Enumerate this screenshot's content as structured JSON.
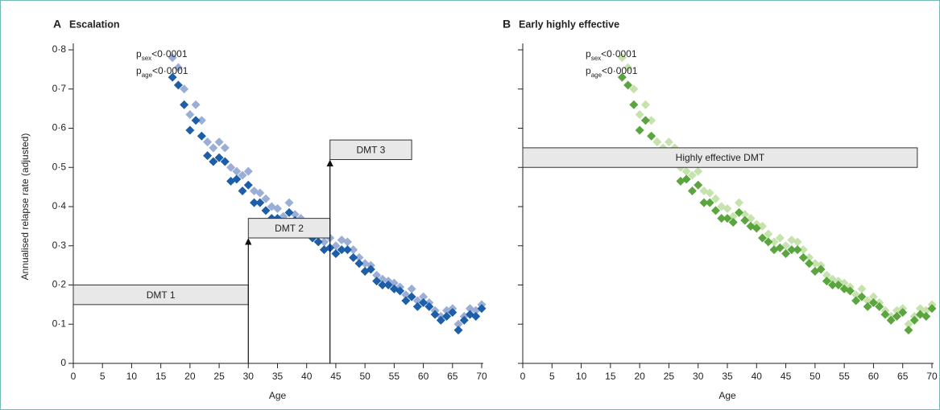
{
  "chart_data": [
    {
      "type": "scatter",
      "panel": "A",
      "title": "Escalation",
      "xlabel": "Age",
      "ylabel": "Annualised relapse rate (adjusted)",
      "x": [
        17,
        18,
        19,
        20,
        21,
        22,
        23,
        24,
        25,
        26,
        27,
        28,
        29,
        30,
        31,
        32,
        33,
        34,
        35,
        36,
        37,
        38,
        39,
        40,
        41,
        42,
        43,
        44,
        45,
        46,
        47,
        48,
        49,
        50,
        51,
        52,
        53,
        54,
        55,
        56,
        57,
        58,
        59,
        60,
        61,
        62,
        63,
        64,
        65,
        66,
        67,
        68,
        69,
        70
      ],
      "series": [
        {
          "color": "#9aaed6",
          "values": [
            0.78,
            0.755,
            0.7,
            0.635,
            0.66,
            0.62,
            0.565,
            0.55,
            0.565,
            0.55,
            0.5,
            0.49,
            0.48,
            0.49,
            0.44,
            0.435,
            0.42,
            0.4,
            0.395,
            0.375,
            0.41,
            0.38,
            0.37,
            0.355,
            0.35,
            0.33,
            0.31,
            0.32,
            0.3,
            0.315,
            0.31,
            0.29,
            0.27,
            0.255,
            0.25,
            0.225,
            0.215,
            0.21,
            0.205,
            0.195,
            0.175,
            0.19,
            0.16,
            0.17,
            0.155,
            0.135,
            0.12,
            0.135,
            0.14,
            0.1,
            0.12,
            0.14,
            0.135,
            0.15
          ]
        },
        {
          "color": "#1d5ea8",
          "values": [
            0.73,
            0.71,
            0.66,
            0.595,
            0.62,
            0.58,
            0.53,
            0.515,
            0.525,
            0.515,
            0.465,
            0.47,
            0.44,
            0.455,
            0.41,
            0.41,
            0.39,
            0.37,
            0.37,
            0.36,
            0.385,
            0.365,
            0.35,
            0.345,
            0.32,
            0.31,
            0.29,
            0.295,
            0.28,
            0.29,
            0.29,
            0.27,
            0.255,
            0.235,
            0.24,
            0.21,
            0.2,
            0.2,
            0.19,
            0.185,
            0.16,
            0.17,
            0.145,
            0.155,
            0.145,
            0.125,
            0.11,
            0.12,
            0.13,
            0.085,
            0.11,
            0.125,
            0.12,
            0.14
          ]
        }
      ],
      "xlim": [
        0,
        70
      ],
      "xticks": [
        0,
        5,
        10,
        15,
        20,
        25,
        30,
        35,
        40,
        45,
        50,
        55,
        60,
        65,
        70
      ],
      "ylim": [
        0,
        0.8
      ],
      "yticks": [
        0,
        {
          "value": 0.1,
          "label": "0·1"
        },
        {
          "value": 0.2,
          "label": "0·2"
        },
        {
          "value": 0.3,
          "label": "0·3"
        },
        {
          "value": 0.4,
          "label": "0·4"
        },
        {
          "value": 0.5,
          "label": "0·5"
        },
        {
          "value": 0.6,
          "label": "0·6"
        },
        {
          "value": 0.7,
          "label": "0·7"
        },
        {
          "value": 0.8,
          "label": "0·8"
        }
      ],
      "treatments": [
        {
          "label": "DMT 1",
          "x": [
            0,
            30
          ],
          "y": [
            0.15,
            0.2
          ]
        },
        {
          "label": "DMT 2",
          "x": [
            30,
            44
          ],
          "y": [
            0.32,
            0.37
          ],
          "arrow": true
        },
        {
          "label": "DMT 3",
          "x": [
            44,
            58
          ],
          "y": [
            0.52,
            0.57
          ],
          "arrow": true
        }
      ],
      "annotations": [
        {
          "symbol": "p",
          "subscript": "sex",
          "text": "<0·0001"
        },
        {
          "symbol": "p",
          "subscript": "age",
          "text": "<0·0001"
        }
      ]
    },
    {
      "type": "scatter",
      "panel": "B",
      "title": "Early highly effective",
      "xlabel": "Age",
      "x": [
        17,
        18,
        19,
        20,
        21,
        22,
        23,
        24,
        25,
        26,
        27,
        28,
        29,
        30,
        31,
        32,
        33,
        34,
        35,
        36,
        37,
        38,
        39,
        40,
        41,
        42,
        43,
        44,
        45,
        46,
        47,
        48,
        49,
        50,
        51,
        52,
        53,
        54,
        55,
        56,
        57,
        58,
        59,
        60,
        61,
        62,
        63,
        64,
        65,
        66,
        67,
        68,
        69,
        70
      ],
      "series": [
        {
          "color": "#c6e2ad",
          "values": [
            0.78,
            0.755,
            0.7,
            0.635,
            0.66,
            0.62,
            0.565,
            0.55,
            0.565,
            0.55,
            0.5,
            0.49,
            0.48,
            0.49,
            0.44,
            0.435,
            0.42,
            0.4,
            0.395,
            0.375,
            0.41,
            0.38,
            0.37,
            0.355,
            0.35,
            0.33,
            0.31,
            0.32,
            0.3,
            0.315,
            0.31,
            0.29,
            0.27,
            0.255,
            0.25,
            0.225,
            0.215,
            0.21,
            0.205,
            0.195,
            0.175,
            0.19,
            0.16,
            0.17,
            0.155,
            0.135,
            0.12,
            0.135,
            0.14,
            0.1,
            0.12,
            0.14,
            0.135,
            0.15
          ]
        },
        {
          "color": "#5aa53e",
          "values": [
            0.73,
            0.71,
            0.66,
            0.595,
            0.62,
            0.58,
            0.53,
            0.515,
            0.525,
            0.515,
            0.465,
            0.47,
            0.44,
            0.455,
            0.41,
            0.41,
            0.39,
            0.37,
            0.37,
            0.36,
            0.385,
            0.365,
            0.35,
            0.345,
            0.32,
            0.31,
            0.29,
            0.295,
            0.28,
            0.29,
            0.29,
            0.27,
            0.255,
            0.235,
            0.24,
            0.21,
            0.2,
            0.2,
            0.19,
            0.185,
            0.16,
            0.17,
            0.145,
            0.155,
            0.145,
            0.125,
            0.11,
            0.12,
            0.13,
            0.085,
            0.11,
            0.125,
            0.12,
            0.14
          ]
        }
      ],
      "xlim": [
        0,
        70
      ],
      "xticks": [
        0,
        5,
        10,
        15,
        20,
        25,
        30,
        35,
        40,
        45,
        50,
        55,
        60,
        65,
        70
      ],
      "ylim": [
        0,
        0.8
      ],
      "yticks": [
        0,
        0.1,
        0.2,
        0.3,
        0.4,
        0.5,
        0.6,
        0.7,
        0.8
      ],
      "ytick_labels": false,
      "treatments": [
        {
          "label": "Highly effective DMT",
          "x": [
            0,
            67.5
          ],
          "y": [
            0.5,
            0.55
          ]
        }
      ],
      "annotations": [
        {
          "symbol": "p",
          "subscript": "sex",
          "text": "<0·0001"
        },
        {
          "symbol": "p",
          "subscript": "age",
          "text": "<0·0001"
        }
      ]
    }
  ]
}
